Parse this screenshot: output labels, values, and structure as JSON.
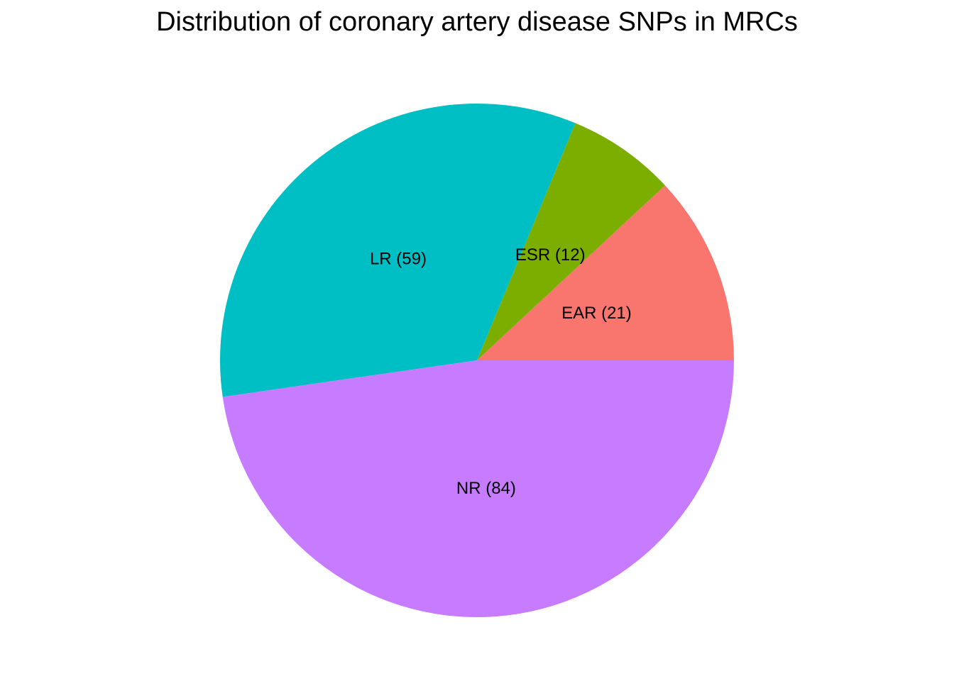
{
  "chart_data": {
    "type": "pie",
    "title": "Distribution of coronary artery disease SNPs in MRCs",
    "slices": [
      {
        "label": "EAR (21)",
        "category": "EAR",
        "value": 21,
        "color": "#F8766D"
      },
      {
        "label": "ESR (12)",
        "category": "ESR",
        "value": 12,
        "color": "#7CAE00"
      },
      {
        "label": "LR (59)",
        "category": "LR",
        "value": 59,
        "color": "#00BFC4"
      },
      {
        "label": "NR (84)",
        "category": "NR",
        "value": 84,
        "color": "#C77CFF"
      }
    ],
    "start": "3 o'clock",
    "direction": "counterclockwise",
    "legend": "none",
    "grid": false
  }
}
